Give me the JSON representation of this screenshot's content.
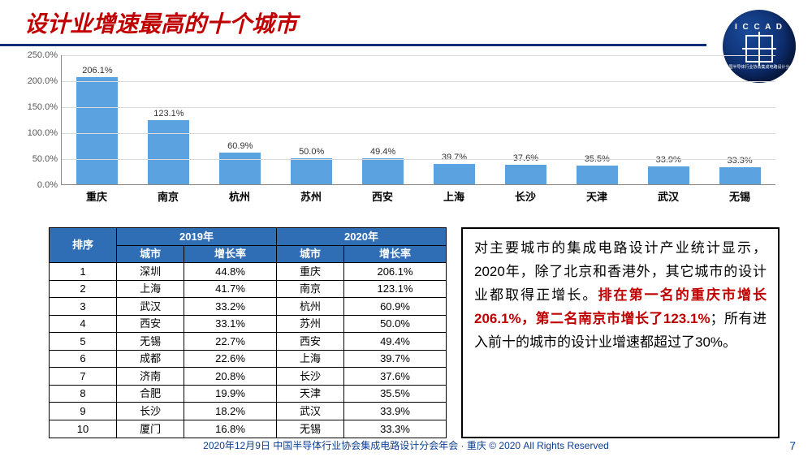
{
  "title": "设计业增速最高的十个城市",
  "logo": {
    "arc": "I C C A D",
    "sub": "中国半导体行业协会集成电路设计分会"
  },
  "chart": {
    "type": "bar",
    "bar_color": "#5aa3e0",
    "grid_color": "#d9d9d9",
    "axis_color": "#888888",
    "label_fontsize": 11,
    "xlabel_fontsize": 13,
    "ylim": [
      0,
      250
    ],
    "ytick_step": 50,
    "yticks": [
      "0.0%",
      "50.0%",
      "100.0%",
      "150.0%",
      "200.0%",
      "250.0%"
    ],
    "categories": [
      "重庆",
      "南京",
      "杭州",
      "苏州",
      "西安",
      "上海",
      "长沙",
      "天津",
      "武汉",
      "无锡"
    ],
    "values": [
      206.1,
      123.1,
      60.9,
      50.0,
      49.4,
      39.7,
      37.6,
      35.5,
      33.9,
      33.3
    ],
    "value_labels": [
      "206.1%",
      "123.1%",
      "60.9%",
      "50.0%",
      "49.4%",
      "39.7%",
      "37.6%",
      "35.5%",
      "33.9%",
      "33.3%"
    ]
  },
  "table": {
    "header_bg": "#2f6db5",
    "header_fg": "#ffffff",
    "border_color": "#000000",
    "fontsize": 13,
    "col_rank": "排序",
    "year_2019": "2019年",
    "year_2020": "2020年",
    "col_city": "城市",
    "col_growth": "增长率",
    "rows": [
      {
        "rank": "1",
        "c19": "深圳",
        "g19": "44.8%",
        "c20": "重庆",
        "g20": "206.1%"
      },
      {
        "rank": "2",
        "c19": "上海",
        "g19": "41.7%",
        "c20": "南京",
        "g20": "123.1%"
      },
      {
        "rank": "3",
        "c19": "武汉",
        "g19": "33.2%",
        "c20": "杭州",
        "g20": "60.9%"
      },
      {
        "rank": "4",
        "c19": "西安",
        "g19": "33.1%",
        "c20": "苏州",
        "g20": "50.0%"
      },
      {
        "rank": "5",
        "c19": "无锡",
        "g19": "22.7%",
        "c20": "西安",
        "g20": "49.4%"
      },
      {
        "rank": "6",
        "c19": "成都",
        "g19": "22.6%",
        "c20": "上海",
        "g20": "39.7%"
      },
      {
        "rank": "7",
        "c19": "济南",
        "g19": "20.8%",
        "c20": "长沙",
        "g20": "37.6%"
      },
      {
        "rank": "8",
        "c19": "合肥",
        "g19": "19.9%",
        "c20": "天津",
        "g20": "35.5%"
      },
      {
        "rank": "9",
        "c19": "长沙",
        "g19": "18.2%",
        "c20": "武汉",
        "g20": "33.9%"
      },
      {
        "rank": "10",
        "c19": "厦门",
        "g19": "16.8%",
        "c20": "无锡",
        "g20": "33.3%"
      }
    ]
  },
  "commentary": {
    "p1": "对主要城市的集成电路设计产业统计显示，2020年，除了北京和香港外，其它城市的设计业都取得正增长。",
    "hl": "排在第一名的重庆市增长206.1%，第二名南京市增长了123.1%",
    "p2": "；所有进入前十的城市的设计业增速都超过了30%。"
  },
  "footer": "2020年12月9日 中国半导体行业协会集成电路设计分会年会 · 重庆 © 2020 All Rights Reserved",
  "page": "7"
}
